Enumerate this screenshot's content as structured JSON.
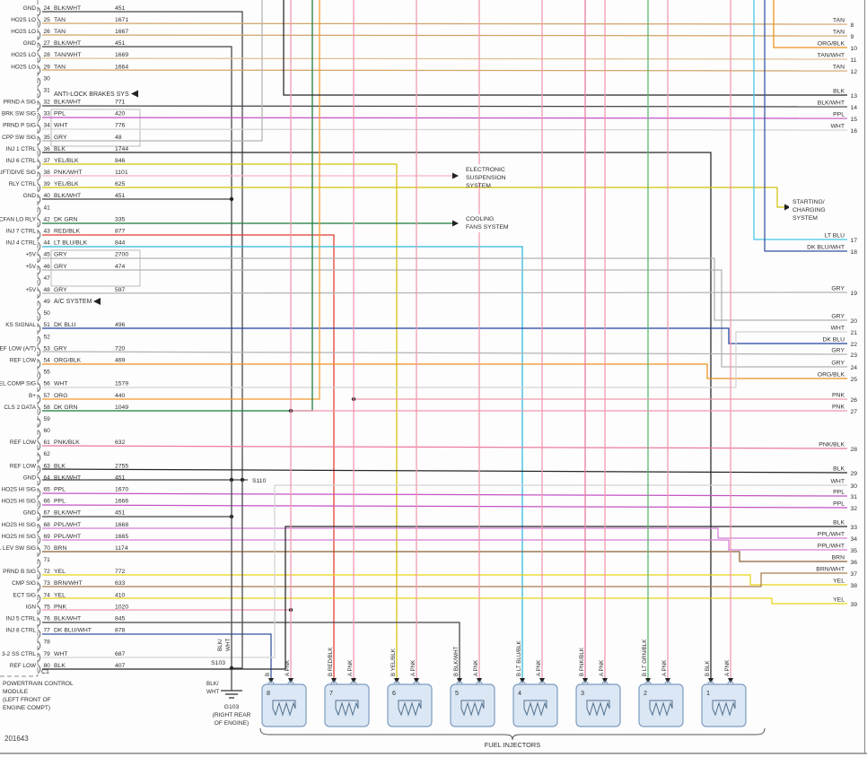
{
  "diagram": {
    "sheet_number": "201643",
    "module": {
      "name_lines": [
        "POWERTRAIN CONTROL",
        "MODULE",
        "(LEFT FRONT OF",
        "ENGINE COMPT)"
      ],
      "connector": "C1"
    },
    "pins": [
      {
        "n": "24",
        "signal": "GND",
        "color": "BLK/WHT",
        "circuit": "451"
      },
      {
        "n": "25",
        "signal": "HO2S LO",
        "color": "TAN",
        "circuit": "1671"
      },
      {
        "n": "26",
        "signal": "HO2S LO",
        "color": "TAN",
        "circuit": "1667"
      },
      {
        "n": "27",
        "signal": "GND",
        "color": "BLK/WHT",
        "circuit": "451"
      },
      {
        "n": "28",
        "signal": "HO2S LO",
        "color": "TAN/WHT",
        "circuit": "1669"
      },
      {
        "n": "29",
        "signal": "HO2S LO",
        "color": "TAN",
        "circuit": "1664"
      },
      {
        "n": "30"
      },
      {
        "n": "31"
      },
      {
        "n": "32",
        "signal": "PRND A SIG",
        "color": "BLK/WHT",
        "circuit": "771"
      },
      {
        "n": "33",
        "signal": "BRK SW SIG",
        "color": "PPL",
        "circuit": "420"
      },
      {
        "n": "34",
        "signal": "PRND P SIG",
        "color": "WHT",
        "circuit": "776"
      },
      {
        "n": "35",
        "signal": "CPP SW SIG",
        "color": "GRY",
        "circuit": "48"
      },
      {
        "n": "36",
        "signal": "INJ 1 CTRL",
        "color": "BLK",
        "circuit": "1744"
      },
      {
        "n": "37",
        "signal": "INJ 6 CTRL",
        "color": "YEL/BLK",
        "circuit": "846"
      },
      {
        "n": "38",
        "signal": "LIFT/DIVE SIG",
        "color": "PNK/WHT",
        "circuit": "1101"
      },
      {
        "n": "39",
        "signal": "RLY CTRL",
        "color": "YEL/BLK",
        "circuit": "625"
      },
      {
        "n": "40",
        "signal": "GND",
        "color": "BLK/WHT",
        "circuit": "451"
      },
      {
        "n": "41"
      },
      {
        "n": "42",
        "signal": "CFAN LO RLY",
        "color": "DK GRN",
        "circuit": "335"
      },
      {
        "n": "43",
        "signal": "INJ 7 CTRL",
        "color": "RED/BLK",
        "circuit": "877"
      },
      {
        "n": "44",
        "signal": "INJ 4 CTRL",
        "color": "LT BLU/BLK",
        "circuit": "844"
      },
      {
        "n": "45",
        "signal": "+5V",
        "color": "GRY",
        "circuit": "2700"
      },
      {
        "n": "46",
        "signal": "+5V",
        "color": "GRY",
        "circuit": "474"
      },
      {
        "n": "47"
      },
      {
        "n": "48",
        "signal": "+5V",
        "color": "GRY",
        "circuit": "597"
      },
      {
        "n": "49"
      },
      {
        "n": "50"
      },
      {
        "n": "51",
        "signal": "KS SIGNAL",
        "color": "DK BLU",
        "circuit": "496"
      },
      {
        "n": "52"
      },
      {
        "n": "53",
        "signal": "REF LOW (A/T)",
        "color": "GRY",
        "circuit": "720"
      },
      {
        "n": "54",
        "signal": "REF LOW",
        "color": "ORG/BLK",
        "circuit": "469"
      },
      {
        "n": "55"
      },
      {
        "n": "56",
        "signal": "FUEL COMP SIG",
        "color": "WHT",
        "circuit": "1579"
      },
      {
        "n": "57",
        "signal": "B+",
        "color": "ORG",
        "circuit": "440"
      },
      {
        "n": "58",
        "signal": "CLS 2 DATA",
        "color": "DK GRN",
        "circuit": "1049"
      },
      {
        "n": "59"
      },
      {
        "n": "60"
      },
      {
        "n": "61",
        "signal": "REF LOW",
        "color": "PNK/BLK",
        "circuit": "632"
      },
      {
        "n": "62"
      },
      {
        "n": "63",
        "signal": "REF LOW",
        "color": "BLK",
        "circuit": "2755"
      },
      {
        "n": "64",
        "signal": "GND",
        "color": "BLK/WHT",
        "circuit": "451"
      },
      {
        "n": "65",
        "signal": "HO2S HI SIG",
        "color": "PPL",
        "circuit": "1670"
      },
      {
        "n": "66",
        "signal": "HO2S HI SIG",
        "color": "PPL",
        "circuit": "1666"
      },
      {
        "n": "67",
        "signal": "GND",
        "color": "BLK/WHT",
        "circuit": "451"
      },
      {
        "n": "68",
        "signal": "HO2S HI SIG",
        "color": "PPL/WHT",
        "circuit": "1668"
      },
      {
        "n": "69",
        "signal": "HO2S HI SIG",
        "color": "PPL/WHT",
        "circuit": "1665"
      },
      {
        "n": "70",
        "signal": "OIL LEV SW SIG",
        "color": "BRN",
        "circuit": "1174"
      },
      {
        "n": "71"
      },
      {
        "n": "72",
        "signal": "PRND B SIG",
        "color": "YEL",
        "circuit": "772"
      },
      {
        "n": "73",
        "signal": "CMP SIG",
        "color": "BRN/WHT",
        "circuit": "633"
      },
      {
        "n": "74",
        "signal": "ECT SIG",
        "color": "YEL",
        "circuit": "410"
      },
      {
        "n": "75",
        "signal": "IGN",
        "color": "PNK",
        "circuit": "1020"
      },
      {
        "n": "76",
        "signal": "INJ 5 CTRL",
        "color": "BLK/WHT",
        "circuit": "845"
      },
      {
        "n": "77",
        "signal": "INJ 8 CTRL",
        "color": "DK BLU/WHT",
        "circuit": "878"
      },
      {
        "n": "78"
      },
      {
        "n": "79",
        "signal": "3-2 SS CTRL",
        "color": "WHT",
        "circuit": "687"
      },
      {
        "n": "80",
        "signal": "REF LOW",
        "color": "BLK",
        "circuit": "407"
      }
    ],
    "right_wires": [
      {
        "color": "TAN",
        "num": "8"
      },
      {
        "color": "TAN",
        "num": "9"
      },
      {
        "color": "ORG/BLK",
        "num": "10"
      },
      {
        "color": "TAN/WHT",
        "num": "11"
      },
      {
        "color": "TAN",
        "num": "12"
      },
      {
        "color": "BLK",
        "num": "13"
      },
      {
        "color": "BLK/WHT",
        "num": "14"
      },
      {
        "color": "PPL",
        "num": "15"
      },
      {
        "color": "WHT",
        "num": "16"
      },
      {
        "color": "LT BLU",
        "num": "17"
      },
      {
        "color": "DK BLU/WHT",
        "num": "18"
      },
      {
        "color": "GRY",
        "num": "19"
      },
      {
        "color": "GRY",
        "num": "20"
      },
      {
        "color": "WHT",
        "num": "21"
      },
      {
        "color": "DK BLU",
        "num": "22"
      },
      {
        "color": "GRY",
        "num": "23"
      },
      {
        "color": "GRY",
        "num": "24"
      },
      {
        "color": "ORG/BLK",
        "num": "25"
      },
      {
        "color": "PNK",
        "num": "26"
      },
      {
        "color": "PNK",
        "num": "27"
      },
      {
        "color": "PNK/BLK",
        "num": "28"
      },
      {
        "color": "BLK",
        "num": "29"
      },
      {
        "color": "WHT",
        "num": "30"
      },
      {
        "color": "PPL",
        "num": "31"
      },
      {
        "color": "PPL",
        "num": "32"
      },
      {
        "color": "BLK",
        "num": "33"
      },
      {
        "color": "PPL/WHT",
        "num": "34"
      },
      {
        "color": "PPL/WHT",
        "num": "35"
      },
      {
        "color": "BRN",
        "num": "36"
      },
      {
        "color": "BRN/WHT",
        "num": "37"
      },
      {
        "color": "YEL",
        "num": "38"
      },
      {
        "color": "YEL",
        "num": "39"
      }
    ],
    "systems": {
      "anti_lock": "ANTI-LOCK BRAKES SYS",
      "ac": "A/C SYSTEM",
      "suspension_lines": [
        "ELECTRONIC",
        "SUSPENSION",
        "SYSTEM"
      ],
      "cooling_lines": [
        "COOLING",
        "FANS SYSTEM"
      ],
      "charging_lines": [
        "STARTING/",
        "CHARGING",
        "SYSTEM"
      ]
    },
    "splices": {
      "s110": "S110",
      "s103": "S103"
    },
    "ground": {
      "id": "G103",
      "location_lines": [
        "(RIGHT REAR",
        "OF ENGINE)"
      ],
      "wire_label_lines": [
        "BLK/",
        "WHT"
      ]
    },
    "injectors": {
      "title": "FUEL INJECTORS",
      "items": [
        {
          "num": "8",
          "terminal_b": "B",
          "terminal_a": "A PNK"
        },
        {
          "num": "7",
          "terminal_b": "B RED/BLK",
          "terminal_a": "A PNK"
        },
        {
          "num": "6",
          "terminal_b": "B YEL/BLK",
          "terminal_a": "A PNK"
        },
        {
          "num": "5",
          "terminal_b": "B BLK/WHT",
          "terminal_a": "A PNK"
        },
        {
          "num": "4",
          "terminal_b": "B LT BLU/BLK",
          "terminal_a": "A PNK"
        },
        {
          "num": "3",
          "terminal_b": "B PNK/BLK",
          "terminal_a": "A PNK"
        },
        {
          "num": "2",
          "terminal_b": "B LT GRN/BLK",
          "terminal_a": "A PNK"
        },
        {
          "num": "1",
          "terminal_b": "B BLK",
          "terminal_a": "A PNK"
        }
      ]
    },
    "palette": {
      "injector_fill": "#dbe7f4",
      "injector_stroke": "#7d9cc0",
      "text": "#2e2e2e",
      "sheet_border": "#888888"
    }
  },
  "wire_colors": {
    "BLK": "#26262a",
    "BLK/WHT": "#43434a",
    "TAN": "#d2a369",
    "TAN/WHT": "#dfc091",
    "PPL": "#c353c3",
    "PPL/WHT": "#d67fd6",
    "WHT": "#d4d4d4",
    "GRY": "#b3b3b3",
    "YEL": "#e8d416",
    "YEL/BLK": "#d2c30a",
    "PNK": "#f297ab",
    "PNK/WHT": "#f6b6c6",
    "PNK/BLK": "#ec7a9c",
    "DK GRN": "#1a7a38",
    "LT GRN/BLK": "#54b96b",
    "RED/BLK": "#e23b2e",
    "LT BLU": "#43c6e6",
    "LT BLU/BLK": "#2eb8dc",
    "DK BLU": "#20409e",
    "DK BLU/WHT": "#33519f",
    "ORG": "#f59a2c",
    "ORG/BLK": "#ee8e1e",
    "BRN": "#8a5f33",
    "BRN/WHT": "#a97e4f"
  }
}
